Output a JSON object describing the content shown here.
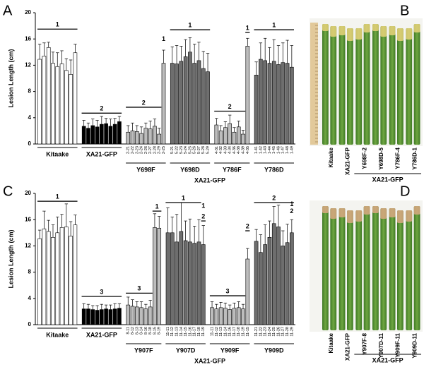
{
  "chart_data": [
    {
      "type": "bar",
      "panel": "A",
      "ylabel": "Lesion Length (cm)",
      "group_caption": "XA21-GFP",
      "ylim": [
        0,
        20
      ],
      "yticks": [
        0,
        4,
        8,
        12,
        16,
        20
      ],
      "annotations": [
        "1",
        "2",
        "2",
        "1",
        "1",
        "2",
        "1",
        "1"
      ],
      "series": [
        {
          "name": "Kitaake",
          "color": "#ffffff",
          "categories": [
            null,
            null,
            null,
            null,
            null,
            null,
            null,
            null,
            null
          ],
          "values": [
            12.9,
            13.4,
            14.7,
            12.3,
            11.8,
            12.2,
            11.2,
            10.6,
            13.9
          ],
          "errors": [
            2.3,
            2.0,
            0.8,
            1.7,
            2.1,
            2.0,
            1.8,
            2.2,
            1.3
          ]
        },
        {
          "name": "XA21-GFP",
          "color": "#000000",
          "categories": [
            null,
            null,
            null,
            null,
            null,
            null,
            null,
            null,
            null
          ],
          "values": [
            2.7,
            2.4,
            2.8,
            2.6,
            3.0,
            3.1,
            2.7,
            3.0,
            3.4
          ],
          "errors": [
            0.9,
            0.8,
            1.0,
            1.0,
            1.2,
            0.8,
            1.1,
            0.9,
            0.8
          ]
        },
        {
          "name": "Y698F",
          "color": "#bdbdbd",
          "categories": [
            "2-21",
            "2-22",
            "2-23",
            "2-24",
            "2-26",
            "2-27",
            "2-28",
            "2-29",
            "2-25"
          ],
          "values": [
            1.8,
            2.0,
            1.9,
            1.6,
            2.4,
            2.3,
            2.7,
            1.5,
            12.3
          ],
          "errors": [
            1.0,
            1.2,
            0.9,
            1.0,
            0.8,
            1.2,
            1.1,
            0.9,
            2.0
          ]
        },
        {
          "name": "Y698D",
          "color": "#6e6e6e",
          "categories": [
            "5-21",
            "5-22",
            "5-23",
            "5-24",
            "5-25",
            "5-26",
            "5-27",
            "5-28",
            "5-29"
          ],
          "values": [
            12.3,
            12.2,
            12.6,
            13.3,
            14.0,
            12.3,
            12.7,
            11.5,
            11.0
          ],
          "errors": [
            2.5,
            2.8,
            2.3,
            2.6,
            2.2,
            2.9,
            2.8,
            2.6,
            2.8
          ]
        },
        {
          "name": "Y786F",
          "color": "#bdbdbd",
          "categories": [
            "4-31",
            "4-32",
            "4-33",
            "4-34",
            "4-36",
            "4-38",
            "4-39",
            "4-35"
          ],
          "values": [
            2.9,
            2.0,
            2.5,
            3.1,
            1.8,
            2.6,
            1.5,
            14.9
          ],
          "errors": [
            1.0,
            0.8,
            0.9,
            1.3,
            0.7,
            0.9,
            0.6,
            1.2
          ]
        },
        {
          "name": "Y786D",
          "color": "#6e6e6e",
          "categories": [
            "1-41",
            "1-42",
            "1-43",
            "1-44",
            "1-45",
            "1-46",
            "1-47",
            "1-48",
            "1-49"
          ],
          "values": [
            10.5,
            12.9,
            12.7,
            12.3,
            12.6,
            12.1,
            12.4,
            12.3,
            11.7
          ],
          "errors": [
            2.0,
            2.5,
            3.4,
            2.4,
            3.3,
            2.9,
            3.0,
            3.5,
            3.3
          ]
        }
      ]
    },
    {
      "type": "bar",
      "panel": "C",
      "ylabel": "Lesion Length (cm)",
      "group_caption": "XA21-GFP",
      "ylim": [
        0,
        20
      ],
      "yticks": [
        0,
        4,
        8,
        12,
        16,
        20
      ],
      "annotations": [
        "1",
        "3",
        "3",
        "1",
        "1",
        "1",
        "2",
        "3",
        "2",
        "2",
        "1",
        "2"
      ],
      "series": [
        {
          "name": "Kitaake",
          "color": "#ffffff",
          "categories": [
            null,
            null,
            null,
            null,
            null,
            null,
            null,
            null,
            null
          ],
          "values": [
            13.1,
            14.6,
            14.2,
            13.3,
            14.0,
            14.8,
            14.9,
            13.5,
            15.2
          ],
          "errors": [
            1.3,
            2.7,
            1.7,
            1.9,
            2.4,
            2.0,
            3.5,
            2.2,
            1.5
          ]
        },
        {
          "name": "XA21-GFP",
          "color": "#000000",
          "categories": [
            null,
            null,
            null,
            null,
            null,
            null,
            null,
            null,
            null
          ],
          "values": [
            2.4,
            2.4,
            2.3,
            2.2,
            2.3,
            2.4,
            2.3,
            2.4,
            2.5
          ],
          "errors": [
            0.8,
            0.7,
            0.6,
            0.7,
            0.8,
            0.6,
            0.7,
            0.8,
            0.7
          ]
        },
        {
          "name": "Y907F",
          "color": "#bdbdbd",
          "categories": [
            "8-11",
            "8-12",
            "8-13",
            "8-14",
            "8-16",
            "8-18",
            "8-15",
            "8-19"
          ],
          "values": [
            3.0,
            2.8,
            2.7,
            2.6,
            2.4,
            2.7,
            14.8,
            14.7
          ],
          "errors": [
            1.2,
            1.0,
            0.8,
            0.9,
            0.7,
            1.0,
            2.1,
            1.8
          ]
        },
        {
          "name": "Y907D",
          "color": "#6e6e6e",
          "categories": [
            "11-11",
            "11-12",
            "11-13",
            "11-14",
            "11-15",
            "11-16",
            "11-17",
            "11-18",
            "11-19"
          ],
          "values": [
            14.0,
            14.0,
            12.6,
            14.2,
            12.8,
            12.6,
            12.4,
            12.6,
            12.2
          ],
          "errors": [
            3.8,
            2.4,
            4.2,
            4.4,
            3.0,
            3.5,
            2.6,
            3.4,
            2.9
          ]
        },
        {
          "name": "Y909F",
          "color": "#bdbdbd",
          "categories": [
            "11-11",
            "11-12",
            "11-13",
            "11-14",
            "11-16",
            "11-17",
            "11-18",
            "11-19",
            "11-15"
          ],
          "values": [
            2.6,
            2.4,
            2.6,
            2.5,
            2.3,
            2.5,
            2.6,
            2.4,
            10.0
          ],
          "errors": [
            0.9,
            0.7,
            0.8,
            0.8,
            0.7,
            0.8,
            0.9,
            0.7,
            1.6
          ]
        },
        {
          "name": "Y909D",
          "color": "#6e6e6e",
          "categories": [
            "11-21",
            "11-22",
            "11-23",
            "11-24",
            "11-25",
            "11-26",
            "11-27",
            "11-28",
            "11-29"
          ],
          "values": [
            12.7,
            11.0,
            12.2,
            13.3,
            15.4,
            14.9,
            12.0,
            12.5,
            14.0
          ],
          "errors": [
            1.8,
            2.7,
            3.0,
            2.5,
            2.6,
            3.3,
            2.3,
            2.8,
            2.0
          ]
        }
      ]
    }
  ],
  "photos": [
    {
      "panel": "B",
      "labels": [
        "Kitaake",
        "XA21-GFP",
        "Y698F-2",
        "Y698D-5",
        "Y786F-4",
        "Y786D-1"
      ],
      "caption": "XA21-GFP"
    },
    {
      "panel": "D",
      "labels": [
        "Kitaake",
        "XA21-GFP",
        "Y907F-8",
        "Y907D-11",
        "Y909F-11",
        "Y909D-11"
      ],
      "caption": "XA21-GFP"
    }
  ]
}
